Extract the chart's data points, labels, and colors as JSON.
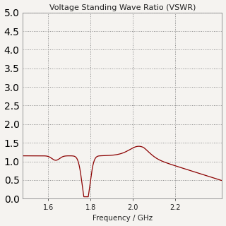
{
  "title": "Voltage Standing Wave Ratio (VSWR)",
  "xlabel": "Frequency / GHz",
  "xlim": [
    1.48,
    2.42
  ],
  "ylim": [
    0.0,
    5.0
  ],
  "x_ticks": [
    1.6,
    1.8,
    2.0,
    2.2
  ],
  "y_grid_spacing": 0.5,
  "background_color": "#f5f3f0",
  "line_color": "#8b0000",
  "title_fontsize": 8.0,
  "xlabel_fontsize": 7.5,
  "tick_fontsize": 7.0
}
